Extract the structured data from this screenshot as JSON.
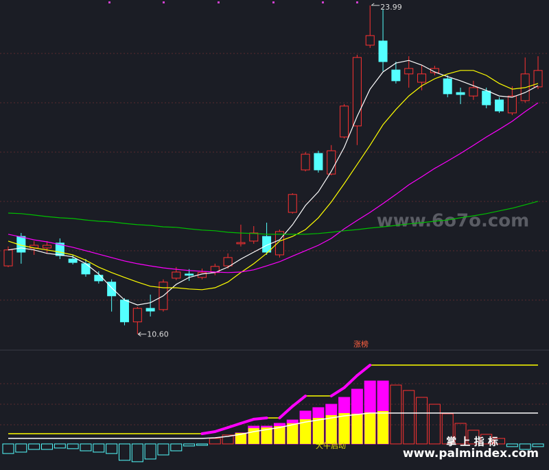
{
  "chart_data": [
    {
      "type": "candlestick",
      "ylim": [
        9.95,
        24.21
      ],
      "up_color": "#ff3232",
      "down_color": "#54ffff",
      "open": [
        13.38,
        14.58,
        14.11,
        14.11,
        14.31,
        13.66,
        13.47,
        13.0,
        12.72,
        11.99,
        11.1,
        11.65,
        11.6,
        12.88,
        13.05,
        12.91,
        13.11,
        13.38,
        14.28,
        14.39,
        14.58,
        13.83,
        15.56,
        17.29,
        17.96,
        17.12,
        18.63,
        19.08,
        22.37,
        22.54,
        21.36,
        21.2,
        20.86,
        21.25,
        21.0,
        20.44,
        20.3,
        20.5,
        20.14,
        19.61,
        20.11,
        20.67
      ],
      "high": [
        14.17,
        14.72,
        14.39,
        14.39,
        14.5,
        13.83,
        13.66,
        13.16,
        12.83,
        12.07,
        11.71,
        12.21,
        12.83,
        13.33,
        13.25,
        13.27,
        13.47,
        13.89,
        15.06,
        15.0,
        15.14,
        14.86,
        16.34,
        18.02,
        18.07,
        18.3,
        19.97,
        21.98,
        23.99,
        23.82,
        21.7,
        21.92,
        21.56,
        21.53,
        21.14,
        20.64,
        20.92,
        20.64,
        20.25,
        20.69,
        21.87,
        21.92
      ],
      "low": [
        13.33,
        13.47,
        13.83,
        13.89,
        13.66,
        13.44,
        12.94,
        12.66,
        11.52,
        10.96,
        10.6,
        11.32,
        11.52,
        12.8,
        12.77,
        12.83,
        13.0,
        13.27,
        14.17,
        14.28,
        13.83,
        13.72,
        15.51,
        17.23,
        17.18,
        17.07,
        18.57,
        18.3,
        22.26,
        21.31,
        20.81,
        20.64,
        20.53,
        21.14,
        20.25,
        19.97,
        20.14,
        19.8,
        19.61,
        19.52,
        20.03,
        20.58
      ],
      "close": [
        14.03,
        13.94,
        14.22,
        14.22,
        13.8,
        13.52,
        13.05,
        12.77,
        12.16,
        11.1,
        11.65,
        11.54,
        12.72,
        13.13,
        13.0,
        13.11,
        13.36,
        13.72,
        14.33,
        14.72,
        13.94,
        14.78,
        16.29,
        17.93,
        17.29,
        18.07,
        19.89,
        21.87,
        22.76,
        21.7,
        20.92,
        21.42,
        21.2,
        21.42,
        20.39,
        20.36,
        20.64,
        19.94,
        19.69,
        20.3,
        21.2,
        21.34
      ],
      "lines": [
        {
          "color": "#ffffff",
          "values": [
            14.03,
            14.11,
            14.03,
            13.89,
            13.83,
            13.75,
            13.47,
            13.05,
            12.49,
            11.99,
            11.79,
            11.88,
            12.16,
            12.63,
            12.91,
            13.05,
            13.11,
            13.33,
            13.66,
            13.94,
            14.22,
            14.44,
            15.06,
            15.84,
            16.4,
            17.23,
            18.21,
            19.47,
            20.58,
            21.28,
            21.64,
            21.75,
            21.56,
            21.28,
            21.09,
            20.92,
            20.72,
            20.53,
            20.3,
            20.25,
            20.44,
            20.72
          ]
        },
        {
          "color": "#ffff00",
          "values": [
            14.39,
            14.22,
            14.11,
            14.03,
            13.94,
            13.83,
            13.61,
            13.33,
            13.11,
            12.91,
            12.72,
            12.55,
            12.49,
            12.49,
            12.44,
            12.41,
            12.49,
            12.72,
            13.11,
            13.47,
            13.89,
            14.39,
            14.58,
            14.86,
            15.34,
            15.98,
            16.73,
            17.51,
            18.29,
            19.13,
            19.75,
            20.3,
            20.72,
            21.0,
            21.2,
            21.34,
            21.34,
            21.14,
            20.81,
            20.58,
            20.64,
            20.81
          ]
        },
        {
          "color": "#ff00ff",
          "values": [
            14.67,
            14.56,
            14.44,
            14.36,
            14.25,
            14.14,
            14.0,
            13.86,
            13.72,
            13.58,
            13.47,
            13.38,
            13.3,
            13.24,
            13.19,
            13.16,
            13.13,
            13.11,
            13.13,
            13.22,
            13.38,
            13.55,
            13.78,
            14.0,
            14.22,
            14.5,
            14.89,
            15.23,
            15.56,
            15.92,
            16.29,
            16.68,
            17.01,
            17.35,
            17.65,
            17.96,
            18.29,
            18.63,
            18.94,
            19.27,
            19.66,
            20.02
          ]
        },
        {
          "color": "#00c000",
          "values": [
            15.53,
            15.51,
            15.45,
            15.39,
            15.34,
            15.31,
            15.25,
            15.2,
            15.17,
            15.11,
            15.06,
            15.03,
            14.97,
            14.95,
            14.89,
            14.84,
            14.81,
            14.75,
            14.72,
            14.7,
            14.67,
            14.67,
            14.67,
            14.67,
            14.7,
            14.75,
            14.81,
            14.86,
            14.92,
            14.97,
            15.03,
            15.09,
            15.14,
            15.2,
            15.25,
            15.34,
            15.42,
            15.51,
            15.62,
            15.73,
            15.87,
            16.01
          ]
        }
      ],
      "max_price": 23.99,
      "min_price": {
        "value": 10.6,
        "label": "10.60"
      },
      "watermark": "www.6o7o.com"
    },
    {
      "type": "indicator",
      "title": "涨榜",
      "label": "大牛启动",
      "ylim": [
        -28,
        100
      ],
      "values": [
        -10.3,
        -8.8,
        -5.9,
        -5.9,
        -4.4,
        -5.1,
        -7.4,
        -8.8,
        -10.3,
        -17.6,
        -19.1,
        -16.2,
        -11.8,
        -7.4,
        -2.2,
        -1.5,
        5.9,
        9.6,
        11.8,
        19.1,
        19.1,
        22.1,
        25.7,
        35.3,
        39.0,
        42.6,
        50.0,
        58.8,
        67.6,
        67.6,
        63.2,
        57.4,
        50.0,
        42.6,
        32.4,
        22.1,
        14.7,
        10.3,
        5.9,
        -2.9,
        -5.9,
        -2.9
      ],
      "inner_values": [
        null,
        null,
        null,
        null,
        null,
        null,
        null,
        null,
        null,
        null,
        null,
        null,
        null,
        null,
        null,
        null,
        null,
        null,
        11.8,
        16.9,
        17.6,
        19.1,
        22.1,
        26.5,
        27.9,
        30.9,
        33.1,
        32.4,
        33.8,
        35.3,
        null,
        null,
        null,
        null,
        null,
        null,
        null,
        null,
        null,
        null,
        null,
        null
      ],
      "neg_color": "#54ffff",
      "pos_color": "#ff3232",
      "strong_color": "#ff00ff",
      "inner_color": "#ffff00",
      "lines": [
        {
          "color": "#ffff00",
          "rise_color": "#ff00ff",
          "values": [
            11.0,
            11.0,
            11.0,
            11.0,
            11.0,
            11.0,
            11.0,
            11.0,
            11.0,
            11.0,
            11.0,
            11.0,
            11.0,
            11.0,
            11.0,
            11.0,
            13.2,
            17.6,
            22.1,
            26.5,
            27.9,
            27.9,
            40.4,
            51.5,
            51.5,
            51.5,
            60.3,
            73.5,
            84.6,
            84.6,
            84.6,
            84.6,
            84.6,
            84.6,
            84.6,
            84.6,
            84.6,
            84.6,
            84.6,
            84.6,
            84.6,
            84.6
          ]
        },
        {
          "color": "#ffffff",
          "values": [
            5.9,
            5.9,
            5.9,
            5.9,
            5.9,
            5.9,
            5.9,
            5.9,
            5.9,
            5.9,
            5.9,
            5.9,
            5.9,
            5.9,
            5.9,
            5.9,
            6.6,
            8.1,
            10.3,
            13.2,
            15.4,
            17.6,
            20.6,
            23.5,
            25.7,
            27.9,
            30.1,
            31.6,
            33.1,
            33.1,
            33.1,
            33.1,
            33.1,
            33.1,
            33.1,
            33.1,
            33.1,
            33.1,
            33.1,
            33.1,
            33.1,
            33.1
          ]
        }
      ],
      "watermarks": [
        "掌 上 指 标",
        "www.palmindex.com"
      ]
    }
  ]
}
